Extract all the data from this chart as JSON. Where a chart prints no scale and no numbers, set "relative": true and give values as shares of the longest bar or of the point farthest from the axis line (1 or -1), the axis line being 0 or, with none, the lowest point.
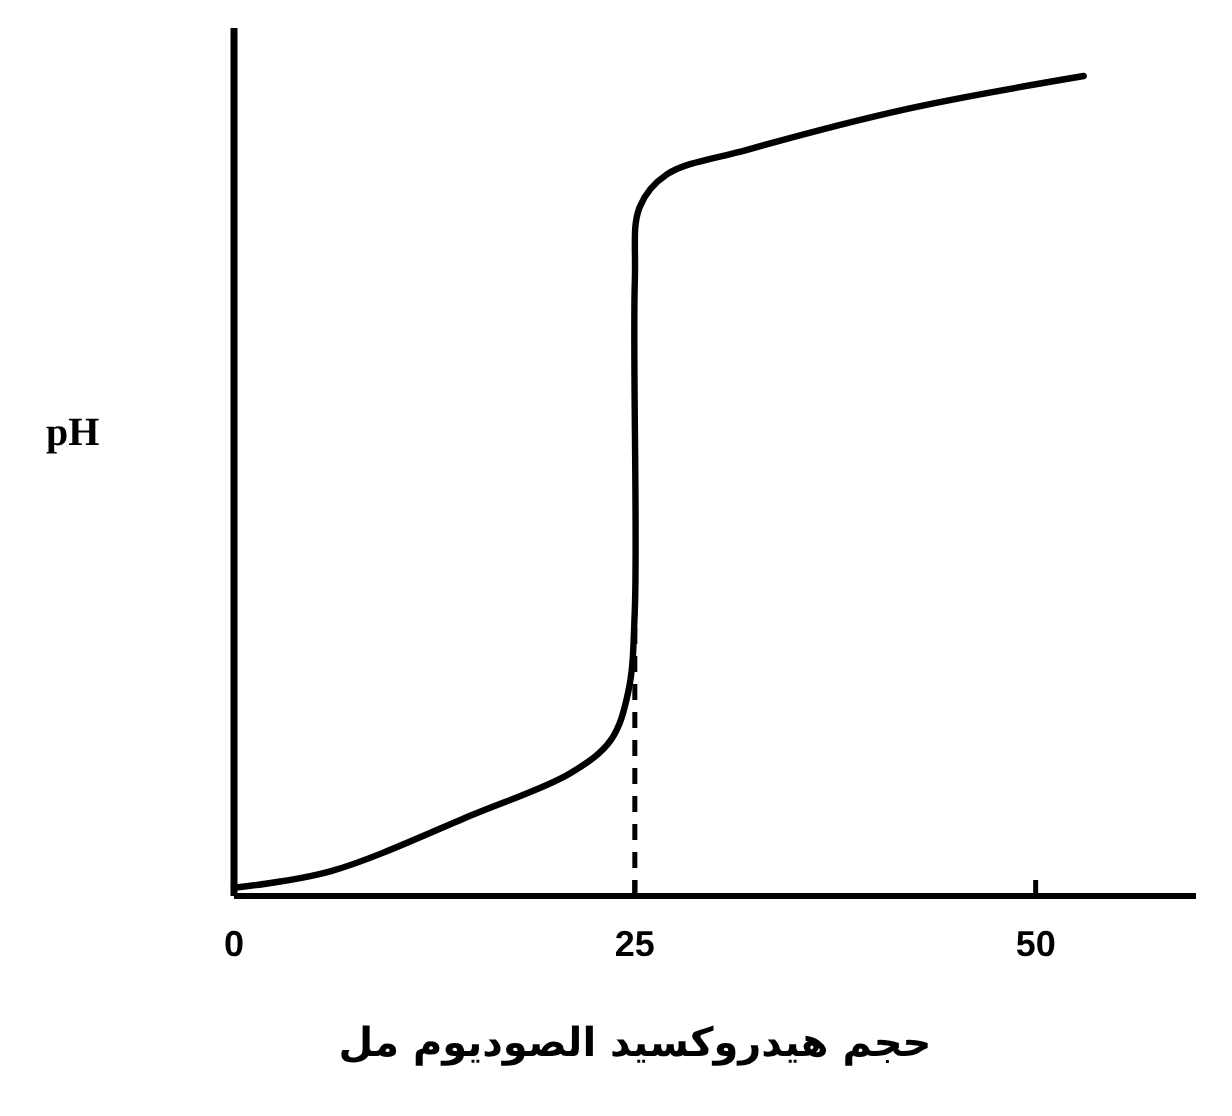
{
  "chart_data": {
    "type": "line",
    "relative": true,
    "xlabel": "حجم هيدروكسيد الصوديوم مل",
    "ylabel": "pH",
    "xlim": [
      0,
      60
    ],
    "xticks": [
      0,
      25,
      50
    ],
    "series": [
      {
        "color": "#000000",
        "x": [
          0,
          6,
          15,
          21,
          23.5,
          24.6,
          25,
          25,
          25.3,
          27,
          32,
          42,
          53
        ],
        "values": [
          0.01,
          0.03,
          0.1,
          0.15,
          0.19,
          0.25,
          0.35,
          0.75,
          0.84,
          0.88,
          0.91,
          0.96,
          1
        ]
      }
    ],
    "ref_lines": [
      {
        "axis": "x",
        "value": 25,
        "color": "#000000",
        "line_style": "dashed"
      }
    ],
    "grid": false,
    "marker": "none",
    "line_style": "solid"
  }
}
